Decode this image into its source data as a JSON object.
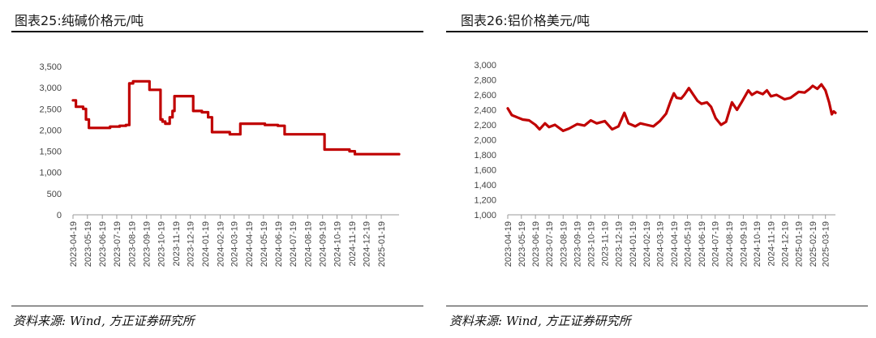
{
  "charts": [
    {
      "title": "图表25:纯碱价格元/吨",
      "source": "资料来源: Wind, 方正证券研究所",
      "color": "#c00000",
      "chart_data": {
        "type": "line",
        "title": "纯碱价格元/吨",
        "xlabel": "",
        "ylabel": "",
        "ylim": [
          0,
          3500
        ],
        "yticks": [
          0,
          500,
          1000,
          1500,
          2000,
          2500,
          3000,
          3500
        ],
        "ytick_labels": [
          "0",
          "500",
          "1,000",
          "1,500",
          "2,000",
          "2,500",
          "3,000",
          "3,500"
        ],
        "xlim": [
          "2023-04-19",
          "2025-02-25"
        ],
        "xtick_labels": [
          "2023-04-19",
          "2023-05-19",
          "2023-06-19",
          "2023-07-19",
          "2023-08-19",
          "2023-09-19",
          "2023-10-19",
          "2023-11-19",
          "2023-12-19",
          "2024-01-19",
          "2024-02-19",
          "2024-03-19",
          "2024-04-19",
          "2024-05-19",
          "2024-06-19",
          "2024-07-19",
          "2024-08-19",
          "2024-09-19",
          "2024-10-19",
          "2024-11-19",
          "2024-12-19",
          "2025-01-19"
        ],
        "grid": false,
        "legend": "none",
        "series": [
          {
            "step": true,
            "points": [
              [
                "2023-04-19",
                2700
              ],
              [
                "2023-04-25",
                2550
              ],
              [
                "2023-05-10",
                2500
              ],
              [
                "2023-05-16",
                2250
              ],
              [
                "2023-05-22",
                2050
              ],
              [
                "2023-07-01",
                2050
              ],
              [
                "2023-07-05",
                2080
              ],
              [
                "2023-07-25",
                2100
              ],
              [
                "2023-08-07",
                2120
              ],
              [
                "2023-08-14",
                3100
              ],
              [
                "2023-08-22",
                3150
              ],
              [
                "2023-09-25",
                2950
              ],
              [
                "2023-10-18",
                2250
              ],
              [
                "2023-10-22",
                2200
              ],
              [
                "2023-10-28",
                2150
              ],
              [
                "2023-11-06",
                2300
              ],
              [
                "2023-11-12",
                2450
              ],
              [
                "2023-11-16",
                2800
              ],
              [
                "2023-12-21",
                2800
              ],
              [
                "2023-12-25",
                2450
              ],
              [
                "2024-01-12",
                2420
              ],
              [
                "2024-01-25",
                2300
              ],
              [
                "2024-02-02",
                1950
              ],
              [
                "2024-03-10",
                1900
              ],
              [
                "2024-04-01",
                2150
              ],
              [
                "2024-05-18",
                2150
              ],
              [
                "2024-05-22",
                2120
              ],
              [
                "2024-06-18",
                2100
              ],
              [
                "2024-07-02",
                1900
              ],
              [
                "2024-09-19",
                1900
              ],
              [
                "2024-09-23",
                1540
              ],
              [
                "2024-11-14",
                1500
              ],
              [
                "2024-11-25",
                1430
              ],
              [
                "2025-02-25",
                1430
              ]
            ]
          }
        ]
      }
    },
    {
      "title": "图表26:铝价格美元/吨",
      "source": "资料来源: Wind, 方正证券研究所",
      "color": "#c00000",
      "chart_data": {
        "type": "line",
        "title": "铝价格美元/吨",
        "xlabel": "",
        "ylabel": "",
        "ylim": [
          1000,
          3000
        ],
        "yticks": [
          1000,
          1200,
          1400,
          1600,
          1800,
          2000,
          2200,
          2400,
          2600,
          2800,
          3000
        ],
        "ytick_labels": [
          "1,000",
          "1,200",
          "1,400",
          "1,600",
          "1,800",
          "2,000",
          "2,200",
          "2,400",
          "2,600",
          "2,800",
          "3,000"
        ],
        "xlim": [
          "2023-04-19",
          "2025-04-10"
        ],
        "xtick_labels": [
          "2023-04-19",
          "2023-05-19",
          "2023-06-19",
          "2023-07-19",
          "2023-08-19",
          "2023-09-19",
          "2023-10-19",
          "2023-11-19",
          "2023-12-19",
          "2024-01-19",
          "2024-02-19",
          "2024-03-19",
          "2024-04-19",
          "2024-05-19",
          "2024-06-19",
          "2024-07-19",
          "2024-08-19",
          "2024-09-19",
          "2024-10-19",
          "2024-11-19",
          "2024-12-19",
          "2025-01-19",
          "2025-02-19",
          "2025-03-19"
        ],
        "grid": false,
        "legend": "none",
        "series": [
          {
            "step": false,
            "points": [
              [
                "2023-04-19",
                2420
              ],
              [
                "2023-04-28",
                2330
              ],
              [
                "2023-05-10",
                2300
              ],
              [
                "2023-05-22",
                2270
              ],
              [
                "2023-06-05",
                2260
              ],
              [
                "2023-06-19",
                2200
              ],
              [
                "2023-06-28",
                2140
              ],
              [
                "2023-07-10",
                2220
              ],
              [
                "2023-07-19",
                2170
              ],
              [
                "2023-08-01",
                2200
              ],
              [
                "2023-08-19",
                2120
              ],
              [
                "2023-09-01",
                2150
              ],
              [
                "2023-09-19",
                2210
              ],
              [
                "2023-10-05",
                2190
              ],
              [
                "2023-10-19",
                2260
              ],
              [
                "2023-11-01",
                2220
              ],
              [
                "2023-11-19",
                2250
              ],
              [
                "2023-12-05",
                2140
              ],
              [
                "2023-12-19",
                2180
              ],
              [
                "2024-01-01",
                2360
              ],
              [
                "2024-01-10",
                2220
              ],
              [
                "2024-01-25",
                2180
              ],
              [
                "2024-02-05",
                2220
              ],
              [
                "2024-02-19",
                2200
              ],
              [
                "2024-03-05",
                2180
              ],
              [
                "2024-03-19",
                2250
              ],
              [
                "2024-04-02",
                2350
              ],
              [
                "2024-04-12",
                2520
              ],
              [
                "2024-04-19",
                2620
              ],
              [
                "2024-04-25",
                2560
              ],
              [
                "2024-05-05",
                2550
              ],
              [
                "2024-05-12",
                2600
              ],
              [
                "2024-05-22",
                2690
              ],
              [
                "2024-06-01",
                2600
              ],
              [
                "2024-06-10",
                2520
              ],
              [
                "2024-06-19",
                2480
              ],
              [
                "2024-07-01",
                2500
              ],
              [
                "2024-07-10",
                2440
              ],
              [
                "2024-07-20",
                2290
              ],
              [
                "2024-08-01",
                2200
              ],
              [
                "2024-08-12",
                2240
              ],
              [
                "2024-08-25",
                2500
              ],
              [
                "2024-09-05",
                2400
              ],
              [
                "2024-09-15",
                2500
              ],
              [
                "2024-09-30",
                2660
              ],
              [
                "2024-10-08",
                2600
              ],
              [
                "2024-10-19",
                2640
              ],
              [
                "2024-11-01",
                2610
              ],
              [
                "2024-11-10",
                2660
              ],
              [
                "2024-11-19",
                2580
              ],
              [
                "2024-12-01",
                2600
              ],
              [
                "2024-12-19",
                2540
              ],
              [
                "2025-01-01",
                2560
              ],
              [
                "2025-01-19",
                2640
              ],
              [
                "2025-02-01",
                2630
              ],
              [
                "2025-02-12",
                2680
              ],
              [
                "2025-02-19",
                2720
              ],
              [
                "2025-03-01",
                2680
              ],
              [
                "2025-03-10",
                2740
              ],
              [
                "2025-03-19",
                2660
              ],
              [
                "2025-03-27",
                2500
              ],
              [
                "2025-04-02",
                2340
              ],
              [
                "2025-04-06",
                2380
              ],
              [
                "2025-04-10",
                2360
              ]
            ]
          }
        ]
      }
    }
  ]
}
